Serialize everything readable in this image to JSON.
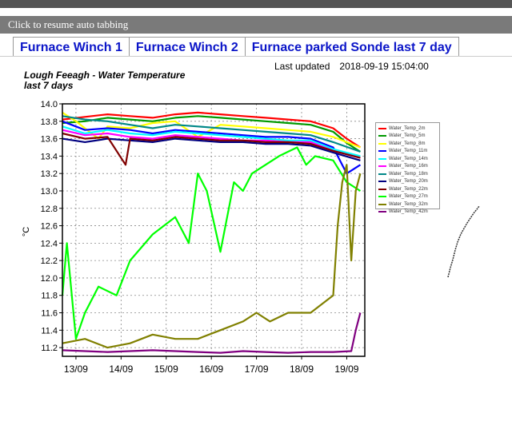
{
  "banner": {
    "resume_label": "Click to resume auto tabbing"
  },
  "tabs": [
    {
      "label": "Furnace Winch 1"
    },
    {
      "label": "Furnace Winch 2"
    },
    {
      "label": "Furnace parked Sonde last 7 day"
    }
  ],
  "last_updated": {
    "label": "Last updated",
    "value": "2018-09-19 15:04:00"
  },
  "chart_data": {
    "type": "line",
    "title": "Lough Feeagh - Water Temperature",
    "subtitle": "last 7 days",
    "ylabel": "°C",
    "xlabel": "",
    "ylim": [
      11.1,
      14.0
    ],
    "yticks": [
      11.2,
      11.4,
      11.6,
      11.8,
      12.0,
      12.2,
      12.4,
      12.6,
      12.8,
      13.0,
      13.2,
      13.4,
      13.6,
      13.8,
      14.0
    ],
    "xlim": [
      0,
      6.7
    ],
    "xticks": [
      {
        "x": 0.3,
        "label": "13/09"
      },
      {
        "x": 1.3,
        "label": "14/09"
      },
      {
        "x": 2.3,
        "label": "15/09"
      },
      {
        "x": 3.3,
        "label": "16/09"
      },
      {
        "x": 4.3,
        "label": "17/09"
      },
      {
        "x": 5.3,
        "label": "18/09"
      },
      {
        "x": 6.3,
        "label": "19/09"
      }
    ],
    "grid": true,
    "legend": "right",
    "series": [
      {
        "name": "Water_Temp_2m",
        "color": "#ff0000",
        "points": [
          [
            0,
            13.82
          ],
          [
            0.5,
            13.85
          ],
          [
            1,
            13.88
          ],
          [
            1.5,
            13.86
          ],
          [
            2,
            13.84
          ],
          [
            2.5,
            13.88
          ],
          [
            3,
            13.9
          ],
          [
            3.5,
            13.88
          ],
          [
            4,
            13.86
          ],
          [
            4.5,
            13.84
          ],
          [
            5,
            13.82
          ],
          [
            5.5,
            13.8
          ],
          [
            6,
            13.72
          ],
          [
            6.3,
            13.6
          ],
          [
            6.6,
            13.5
          ]
        ]
      },
      {
        "name": "Water_Temp_5m",
        "color": "#009900",
        "points": [
          [
            0,
            13.78
          ],
          [
            0.5,
            13.8
          ],
          [
            1,
            13.84
          ],
          [
            1.5,
            13.82
          ],
          [
            2,
            13.8
          ],
          [
            2.5,
            13.84
          ],
          [
            3,
            13.86
          ],
          [
            3.5,
            13.84
          ],
          [
            4,
            13.82
          ],
          [
            4.5,
            13.8
          ],
          [
            5,
            13.78
          ],
          [
            5.5,
            13.76
          ],
          [
            6,
            13.68
          ],
          [
            6.3,
            13.55
          ],
          [
            6.6,
            13.45
          ]
        ]
      },
      {
        "name": "Water_Temp_8m",
        "color": "#ffff00",
        "points": [
          [
            0,
            13.9
          ],
          [
            0.3,
            13.8
          ],
          [
            0.8,
            13.6
          ],
          [
            1,
            13.74
          ],
          [
            1.5,
            13.72
          ],
          [
            2,
            13.78
          ],
          [
            2.5,
            13.8
          ],
          [
            3,
            13.62
          ],
          [
            3.5,
            13.76
          ],
          [
            4,
            13.74
          ],
          [
            4.5,
            13.72
          ],
          [
            5,
            13.7
          ],
          [
            5.5,
            13.68
          ],
          [
            6,
            13.62
          ],
          [
            6.6,
            13.5
          ]
        ]
      },
      {
        "name": "Water_Temp_11m",
        "color": "#0000ff",
        "points": [
          [
            0,
            13.8
          ],
          [
            0.5,
            13.7
          ],
          [
            1,
            13.72
          ],
          [
            1.5,
            13.7
          ],
          [
            2,
            13.66
          ],
          [
            2.5,
            13.7
          ],
          [
            3,
            13.68
          ],
          [
            3.5,
            13.66
          ],
          [
            4,
            13.64
          ],
          [
            4.5,
            13.62
          ],
          [
            5,
            13.62
          ],
          [
            5.5,
            13.6
          ],
          [
            6,
            13.5
          ],
          [
            6.3,
            13.2
          ],
          [
            6.6,
            13.3
          ]
        ]
      },
      {
        "name": "Water_Temp_14m",
        "color": "#00ffff",
        "points": [
          [
            0,
            13.74
          ],
          [
            0.5,
            13.66
          ],
          [
            1,
            13.7
          ],
          [
            1.5,
            13.66
          ],
          [
            2,
            13.64
          ],
          [
            2.5,
            13.68
          ],
          [
            3,
            13.66
          ],
          [
            3.5,
            13.64
          ],
          [
            4,
            13.62
          ],
          [
            4.5,
            13.6
          ],
          [
            5,
            13.58
          ],
          [
            5.5,
            13.58
          ],
          [
            6,
            13.48
          ],
          [
            6.6,
            13.4
          ]
        ]
      },
      {
        "name": "Water_Temp_16m",
        "color": "#ff00ff",
        "points": [
          [
            0,
            13.7
          ],
          [
            0.5,
            13.64
          ],
          [
            1,
            13.66
          ],
          [
            1.5,
            13.62
          ],
          [
            2,
            13.6
          ],
          [
            2.5,
            13.64
          ],
          [
            3,
            13.62
          ],
          [
            3.5,
            13.6
          ],
          [
            4,
            13.58
          ],
          [
            4.5,
            13.58
          ],
          [
            5,
            13.56
          ],
          [
            5.5,
            13.56
          ],
          [
            6,
            13.46
          ],
          [
            6.6,
            13.38
          ]
        ]
      },
      {
        "name": "Water_Temp_18m",
        "color": "#008888",
        "points": [
          [
            0,
            13.86
          ],
          [
            0.5,
            13.82
          ],
          [
            1,
            13.8
          ],
          [
            1.5,
            13.76
          ],
          [
            2,
            13.72
          ],
          [
            2.5,
            13.76
          ],
          [
            3,
            13.74
          ],
          [
            3.5,
            13.72
          ],
          [
            4,
            13.7
          ],
          [
            4.5,
            13.68
          ],
          [
            5,
            13.66
          ],
          [
            5.5,
            13.64
          ],
          [
            6,
            13.56
          ],
          [
            6.6,
            13.45
          ]
        ]
      },
      {
        "name": "Water_Temp_20m",
        "color": "#000080",
        "points": [
          [
            0,
            13.6
          ],
          [
            0.5,
            13.56
          ],
          [
            1,
            13.6
          ],
          [
            1.5,
            13.58
          ],
          [
            2,
            13.56
          ],
          [
            2.5,
            13.6
          ],
          [
            3,
            13.58
          ],
          [
            3.5,
            13.56
          ],
          [
            4,
            13.56
          ],
          [
            4.5,
            13.54
          ],
          [
            5,
            13.54
          ],
          [
            5.5,
            13.52
          ],
          [
            6,
            13.44
          ],
          [
            6.6,
            13.35
          ]
        ]
      },
      {
        "name": "Water_Temp_22m",
        "color": "#800000",
        "points": [
          [
            0,
            13.66
          ],
          [
            0.5,
            13.6
          ],
          [
            1,
            13.62
          ],
          [
            1.4,
            13.3
          ],
          [
            1.5,
            13.6
          ],
          [
            2,
            13.58
          ],
          [
            2.5,
            13.62
          ],
          [
            3,
            13.6
          ],
          [
            3.5,
            13.58
          ],
          [
            4,
            13.58
          ],
          [
            4.5,
            13.56
          ],
          [
            5,
            13.56
          ],
          [
            5.5,
            13.54
          ],
          [
            6,
            13.46
          ],
          [
            6.6,
            13.38
          ]
        ]
      },
      {
        "name": "Water_Temp_27m",
        "color": "#00ff00",
        "points": [
          [
            0,
            11.8
          ],
          [
            0.1,
            12.4
          ],
          [
            0.3,
            11.3
          ],
          [
            0.5,
            11.6
          ],
          [
            0.8,
            11.9
          ],
          [
            1.2,
            11.8
          ],
          [
            1.5,
            12.2
          ],
          [
            2,
            12.5
          ],
          [
            2.5,
            12.7
          ],
          [
            2.8,
            12.4
          ],
          [
            3,
            13.2
          ],
          [
            3.2,
            13.0
          ],
          [
            3.5,
            12.3
          ],
          [
            3.8,
            13.1
          ],
          [
            4,
            13.0
          ],
          [
            4.2,
            13.2
          ],
          [
            4.5,
            13.3
          ],
          [
            4.8,
            13.4
          ],
          [
            5,
            13.45
          ],
          [
            5.2,
            13.5
          ],
          [
            5.4,
            13.3
          ],
          [
            5.6,
            13.4
          ],
          [
            6,
            13.35
          ],
          [
            6.3,
            13.1
          ],
          [
            6.6,
            13.0
          ]
        ]
      },
      {
        "name": "Water_Temp_32m",
        "color": "#808000",
        "points": [
          [
            0,
            11.25
          ],
          [
            0.5,
            11.3
          ],
          [
            1,
            11.2
          ],
          [
            1.5,
            11.25
          ],
          [
            2,
            11.35
          ],
          [
            2.5,
            11.3
          ],
          [
            3,
            11.3
          ],
          [
            3.5,
            11.4
          ],
          [
            4,
            11.5
          ],
          [
            4.3,
            11.6
          ],
          [
            4.6,
            11.5
          ],
          [
            5,
            11.6
          ],
          [
            5.5,
            11.6
          ],
          [
            6,
            11.8
          ],
          [
            6.1,
            12.6
          ],
          [
            6.2,
            13.1
          ],
          [
            6.3,
            13.3
          ],
          [
            6.4,
            12.2
          ],
          [
            6.5,
            13.0
          ],
          [
            6.6,
            13.2
          ]
        ]
      },
      {
        "name": "Water_Temp_42m",
        "color": "#800080",
        "points": [
          [
            0,
            11.17
          ],
          [
            0.5,
            11.16
          ],
          [
            1,
            11.15
          ],
          [
            1.5,
            11.16
          ],
          [
            2,
            11.17
          ],
          [
            2.5,
            11.16
          ],
          [
            3,
            11.15
          ],
          [
            3.5,
            11.14
          ],
          [
            4,
            11.16
          ],
          [
            4.5,
            11.15
          ],
          [
            5,
            11.14
          ],
          [
            5.5,
            11.15
          ],
          [
            6,
            11.15
          ],
          [
            6.4,
            11.16
          ],
          [
            6.5,
            11.4
          ],
          [
            6.6,
            11.6
          ]
        ]
      }
    ]
  }
}
